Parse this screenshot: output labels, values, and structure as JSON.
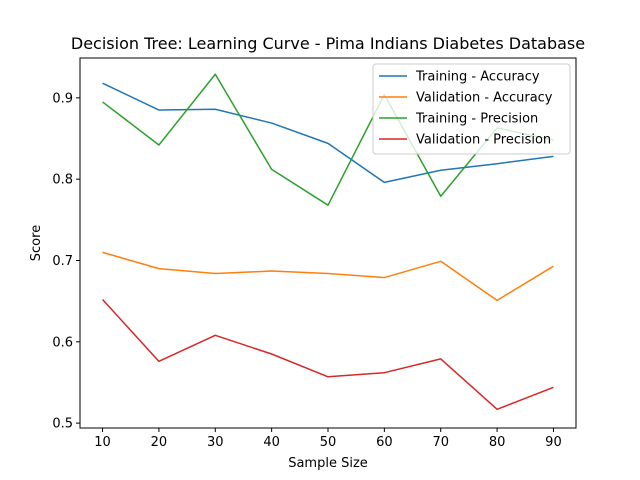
{
  "chart_data": {
    "type": "line",
    "title": "Decision Tree: Learning Curve - Pima Indians Diabetes Database",
    "xlabel": "Sample Size",
    "ylabel": "Score",
    "x": [
      10,
      20,
      30,
      40,
      50,
      60,
      70,
      80,
      90
    ],
    "xlim": [
      6,
      94
    ],
    "ylim": [
      0.494,
      0.949
    ],
    "xticks": [
      10,
      20,
      30,
      40,
      50,
      60,
      70,
      80,
      90
    ],
    "xtick_labels": [
      "10",
      "20",
      "30",
      "40",
      "50",
      "60",
      "70",
      "80",
      "90"
    ],
    "yticks": [
      0.5,
      0.6,
      0.7,
      0.8,
      0.9
    ],
    "ytick_labels": [
      "0.5",
      "0.6",
      "0.7",
      "0.8",
      "0.9"
    ],
    "grid": false,
    "legend_position": "top-right",
    "series": [
      {
        "name": "Training - Accuracy",
        "color": "#1f77b4",
        "values": [
          0.918,
          0.885,
          0.886,
          0.869,
          0.844,
          0.796,
          0.811,
          0.819,
          0.828
        ]
      },
      {
        "name": "Validation - Accuracy",
        "color": "#ff7f0e",
        "values": [
          0.71,
          0.69,
          0.684,
          0.687,
          0.684,
          0.679,
          0.699,
          0.651,
          0.693
        ]
      },
      {
        "name": "Training - Precision",
        "color": "#2ca02c",
        "values": [
          0.895,
          0.842,
          0.929,
          0.812,
          0.768,
          0.904,
          0.779,
          0.863,
          0.848
        ]
      },
      {
        "name": "Validation - Precision",
        "color": "#d62728",
        "values": [
          0.652,
          0.576,
          0.608,
          0.585,
          0.557,
          0.562,
          0.579,
          0.517,
          0.544
        ]
      }
    ]
  }
}
